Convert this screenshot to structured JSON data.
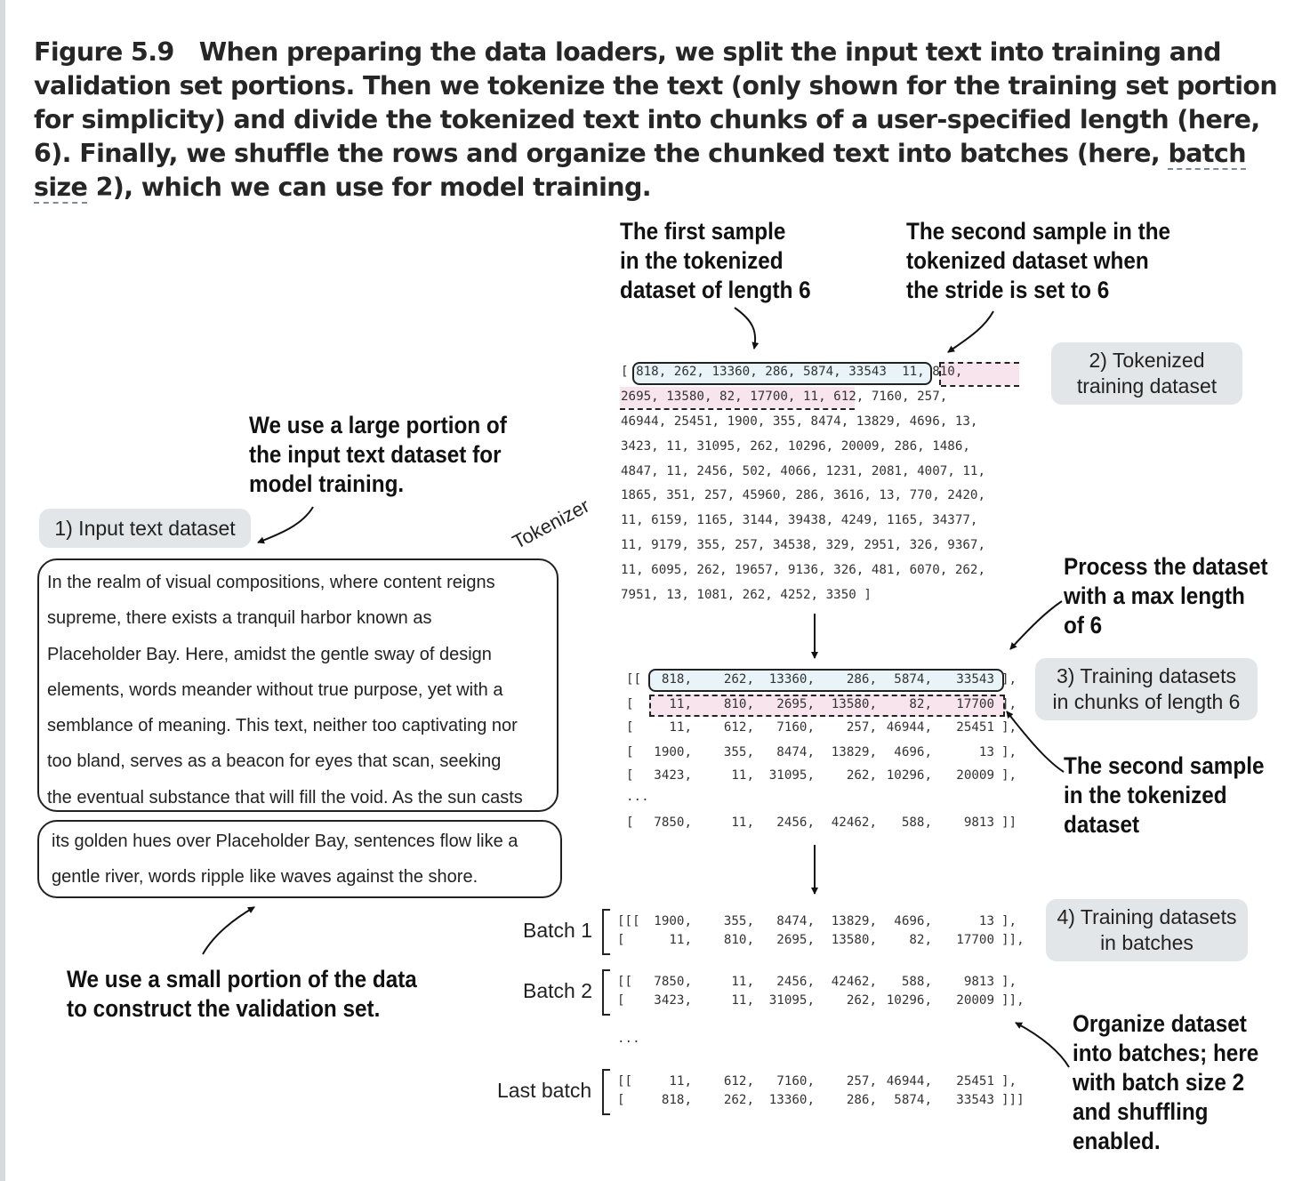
{
  "caption": {
    "figure_label": "Figure 5.9",
    "text_before": "When preparing the data loaders, we split the input text into training and validation set portions. Then we tokenize the text (only shown for the training set portion for simplicity) and divide the tokenized text into chunks of a user-specified length (here, 6). Finally, we shuffle the rows and organize the chunked text into batches (here, ",
    "underlined": "batch size",
    "text_after": " 2), which we can use for model training."
  },
  "annotations": {
    "first_sample": [
      "The first sample",
      "in the tokenized",
      "dataset of length 6"
    ],
    "second_sample_stride": [
      "The second sample in the",
      "tokenized dataset when",
      "the stride is set to 6"
    ],
    "large_portion": [
      "We use a large portion of",
      "the input text dataset for",
      "model training."
    ],
    "small_portion": [
      "We use a small portion of the data",
      "to construct the validation set."
    ],
    "process_dataset": [
      "Process the dataset",
      "with a max length",
      "of 6"
    ],
    "second_sample": [
      "The second sample",
      "in the tokenized",
      "dataset"
    ],
    "organize": [
      "Organize dataset",
      "into batches; here",
      "with batch size 2",
      "and shuffling",
      "enabled."
    ]
  },
  "labels": {
    "input_text": "1) Input text dataset",
    "tokenized": [
      "2) Tokenized",
      "training dataset"
    ],
    "chunks": [
      "3) Training datasets",
      "in chunks of length 6"
    ],
    "batches": [
      "4) Training datasets",
      "in batches"
    ],
    "tokenizer": "Tokenizer"
  },
  "input_text": {
    "training_lines": [
      "In the realm of visual compositions, where content reigns",
      "supreme, there exists a tranquil harbor known as",
      "Placeholder Bay. Here, amidst the gentle sway of design",
      "elements, words meander without true purpose, yet with a",
      "semblance of meaning. This text, neither too captivating nor",
      "too bland, serves as a beacon for eyes that scan, seeking",
      "the eventual substance that will fill the void. As the sun casts"
    ],
    "validation_lines": [
      "its golden hues over Placeholder Bay, sentences flow like a",
      "gentle river, words ripple like waves against the shore."
    ]
  },
  "tokenized": {
    "open": "[",
    "first_sample": "818, 262, 13360, 286, 5874, 33543",
    "line1_sep": ", ",
    "second_sample_a": "11, 810,",
    "second_sample_b": "2695, 13580, 82, 17700, 11",
    "line2_rest": ", 612, 7160, 257,",
    "lines": [
      "46944, 25451, 1900, 355, 8474, 13829, 4696, 13,",
      "3423, 11, 31095, 262, 10296, 20009, 286, 1486,",
      "4847, 11, 2456, 502, 4066, 1231, 2081, 4007, 11,",
      "1865, 351, 257, 45960, 286, 3616, 13, 770, 2420,",
      "11, 6159, 1165, 3144, 39438, 4249, 1165, 34377,",
      "11, 9179, 355, 257, 34538, 329, 2951, 326, 9367,",
      "11, 6095, 262, 19657, 9136, 326, 481, 6070, 262,",
      "7951, 13, 1081, 262, 4252, 3350 ]"
    ]
  },
  "chunks": {
    "rows": [
      [
        "[[",
        "818,",
        "262,",
        "13360,",
        "286,",
        "5874,",
        "33543",
        "],"
      ],
      [
        "[",
        "11,",
        "810,",
        "2695,",
        "13580,",
        "82,",
        "17700",
        "],"
      ],
      [
        "[",
        "11,",
        "612,",
        "7160,",
        "257,",
        "46944,",
        "25451",
        "],"
      ],
      [
        "[",
        "1900,",
        "355,",
        "8474,",
        "13829,",
        "4696,",
        "13",
        "],"
      ],
      [
        "[",
        "3423,",
        "11,",
        "31095,",
        "262,",
        "10296,",
        "20009",
        "],"
      ]
    ],
    "ellipsis": "...",
    "last_row": [
      "[",
      "7850,",
      "11,",
      "2456,",
      "42462,",
      "588,",
      "9813",
      "]]"
    ]
  },
  "batches": [
    {
      "label": "Batch 1",
      "rows": [
        [
          "[[[",
          "1900,",
          "355,",
          "8474,",
          "13829,",
          "4696,",
          "13",
          "],"
        ],
        [
          "[",
          "11,",
          "810,",
          "2695,",
          "13580,",
          "82,",
          "17700",
          "]],"
        ]
      ]
    },
    {
      "label": "Batch 2",
      "rows": [
        [
          "[[",
          "7850,",
          "11,",
          "2456,",
          "42462,",
          "588,",
          "9813",
          "],"
        ],
        [
          "[",
          "3423,",
          "11,",
          "31095,",
          "262,",
          "10296,",
          "20009",
          "]],"
        ]
      ]
    },
    {
      "label": "Last batch",
      "rows": [
        [
          "[[",
          "11,",
          "612,",
          "7160,",
          "257,",
          "46944,",
          "25451",
          "],"
        ],
        [
          "[",
          "818,",
          "262,",
          "13360,",
          "286,",
          "5874,",
          "33543",
          "]]]"
        ]
      ]
    }
  ],
  "batch_ellipsis": "...",
  "colors": {
    "pill_bg": "#e3e6e8",
    "first_sample_fill": "#e8f4f8",
    "second_sample_fill": "#f8e4ec"
  }
}
